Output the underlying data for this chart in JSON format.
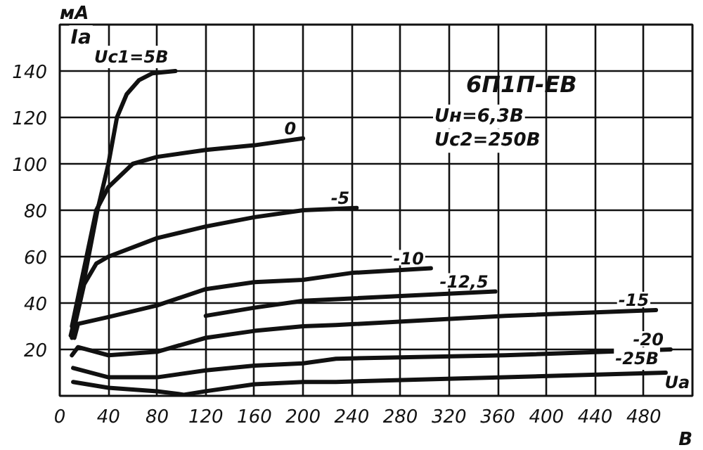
{
  "chart_data": {
    "type": "line",
    "title": "6П1П-ЕВ",
    "xlabel": "Uа",
    "ylabel": "Iа",
    "xlim": [
      0,
      520
    ],
    "ylim": [
      0,
      160
    ],
    "xticks": [
      0,
      40,
      80,
      120,
      160,
      200,
      240,
      280,
      320,
      360,
      400,
      440,
      480
    ],
    "yticks": [
      20,
      40,
      60,
      80,
      100,
      120,
      140
    ],
    "grid": true,
    "marker": "none",
    "line_style": "solid",
    "series": [
      {
        "name": "Uc1=5В",
        "color": "#111111",
        "x": [
          9,
          20,
          31,
          40,
          47,
          55,
          65,
          76,
          95
        ],
        "values": [
          26,
          50,
          80,
          100,
          120,
          130,
          136,
          139,
          140
        ]
      },
      {
        "name": "0",
        "color": "#111111",
        "x": [
          10,
          20,
          30,
          40,
          60,
          80,
          120,
          160,
          200
        ],
        "values": [
          30,
          55,
          80,
          90,
          100,
          103,
          106,
          108,
          111
        ]
      },
      {
        "name": "-5",
        "color": "#111111",
        "x": [
          10,
          20,
          30,
          40,
          80,
          120,
          160,
          200,
          244
        ],
        "values": [
          25,
          48,
          57,
          60,
          68,
          73,
          77,
          80,
          81
        ]
      },
      {
        "name": "-10",
        "color": "#111111",
        "x": [
          12,
          15,
          40,
          80,
          120,
          160,
          200,
          240,
          305
        ],
        "values": [
          25,
          31,
          34,
          39,
          46,
          49,
          50,
          53,
          55
        ]
      },
      {
        "name": "-12,5",
        "color": "#111111",
        "x": [
          120,
          160,
          200,
          358
        ],
        "values": [
          34.5,
          38,
          41,
          45
        ]
      },
      {
        "name": "-15",
        "color": "#111111",
        "x": [
          10,
          15,
          40,
          80,
          120,
          160,
          200,
          227,
          366,
          490
        ],
        "values": [
          17.5,
          21,
          17.5,
          19,
          25,
          28,
          30,
          30.5,
          34.5,
          37
        ]
      },
      {
        "name": "-20",
        "color": "#111111",
        "x": [
          11,
          40,
          80,
          120,
          160,
          200,
          227,
          366,
          502
        ],
        "values": [
          12,
          8,
          8,
          11,
          13,
          14,
          16,
          17.5,
          20
        ]
      },
      {
        "name": "-25В",
        "color": "#111111",
        "x": [
          11,
          40,
          80,
          102,
          120,
          160,
          200,
          227,
          366,
          498
        ],
        "values": [
          6,
          3.5,
          2,
          0.5,
          2,
          5,
          6,
          6,
          8,
          10
        ]
      }
    ],
    "annotations": [
      "Uн=6,3В",
      "Uс2=250В",
      "мА",
      "В"
    ]
  }
}
